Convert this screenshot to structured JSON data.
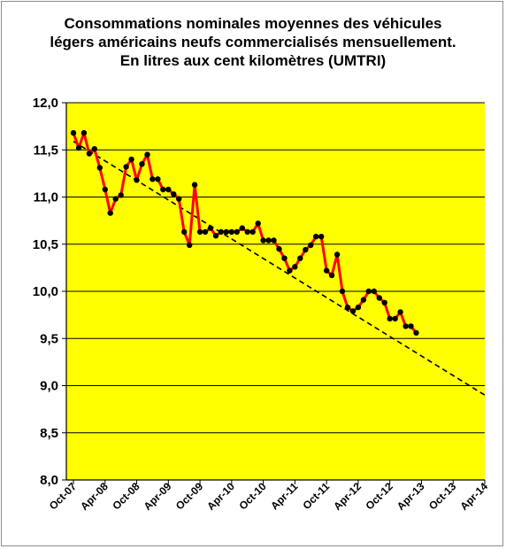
{
  "chart_data": {
    "type": "line",
    "title_lines": [
      "Consommations nominales  moyennes des véhicules",
      "légers américains  neufs commercialisés mensuellement.",
      "En litres aux cent kilomètres (UMTRI)"
    ],
    "xlabel": "",
    "ylabel": "",
    "ylim": [
      8.0,
      12.0
    ],
    "yticks": [
      "12,0",
      "11,5",
      "11,0",
      "10,5",
      "10,0",
      "9,5",
      "9,0",
      "8,5",
      "8,0"
    ],
    "ytick_values": [
      12.0,
      11.5,
      11.0,
      10.5,
      10.0,
      9.5,
      9.0,
      8.5,
      8.0
    ],
    "xticks": [
      "Oct-07",
      "Apr-08",
      "Oct-08",
      "Apr-09",
      "Oct-09",
      "Apr-10",
      "Oct-10",
      "Apr-11",
      "Oct-11",
      "Apr-12",
      "Oct-12",
      "Apr-13",
      "Oct-13",
      "Apr-14"
    ],
    "x_month_range": [
      "Oct-07",
      "Apr-14"
    ],
    "grid": "horizontal",
    "plot_background": "#ffff00",
    "series": [
      {
        "style": "line-with-markers",
        "line_color": "#ff0000",
        "marker_color": "#000000",
        "start": "Oct-07",
        "values": [
          11.68,
          11.52,
          11.68,
          11.46,
          11.51,
          11.31,
          11.08,
          10.83,
          10.98,
          11.02,
          11.32,
          11.4,
          11.18,
          11.35,
          11.45,
          11.19,
          11.19,
          11.08,
          11.08,
          11.03,
          10.98,
          10.63,
          10.49,
          11.13,
          10.63,
          10.63,
          10.67,
          10.59,
          10.63,
          10.63,
          10.63,
          10.63,
          10.67,
          10.63,
          10.63,
          10.72,
          10.54,
          10.54,
          10.54,
          10.45,
          10.35,
          10.22,
          10.26,
          10.35,
          10.44,
          10.49,
          10.58,
          10.58,
          10.22,
          10.17,
          10.39,
          10.0,
          9.83,
          9.79,
          9.83,
          9.91,
          10.0,
          10.0,
          9.93,
          9.88,
          9.71,
          9.71,
          9.78,
          9.63,
          9.63,
          9.56
        ]
      },
      {
        "style": "dashed-trend",
        "line_color": "#000000",
        "start": "Oct-07",
        "end": "Apr-14",
        "values": [
          11.59,
          8.9
        ]
      }
    ]
  }
}
